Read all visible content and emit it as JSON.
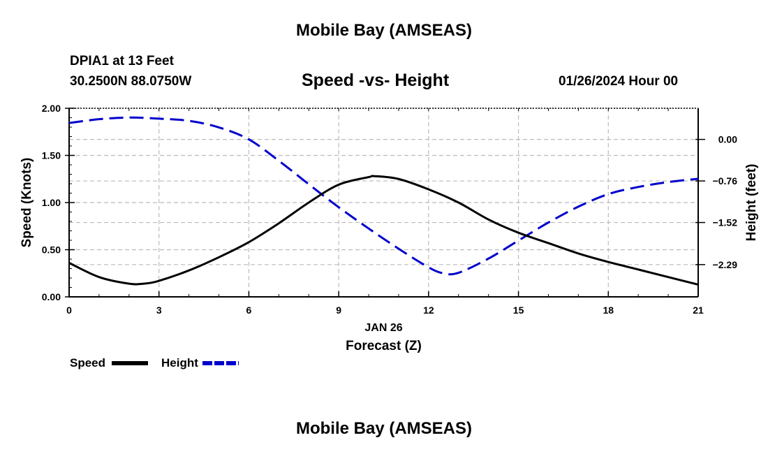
{
  "header": {
    "title": "Mobile Bay (AMSEAS)",
    "station": "DPIA1 at 13 Feet",
    "coords": "30.2500N  88.0750W",
    "datetime": "01/26/2024 Hour 00"
  },
  "footer": {
    "title": "Mobile Bay (AMSEAS)"
  },
  "colors": {
    "speed": "#000000",
    "height": "#0000cc",
    "grid": "#bbbbbb"
  },
  "chart_data": {
    "type": "line",
    "title": "Speed -vs- Height",
    "xlabel": "Forecast (Z)",
    "xdate_label": "JAN 26",
    "ylabel": "Speed (Knots)",
    "y2label": "Height (feet)",
    "xlim": [
      0,
      21
    ],
    "ylim": [
      0,
      2.0
    ],
    "y2lim": [
      -2.88,
      0.57
    ],
    "x_ticks": [
      0,
      3,
      6,
      9,
      12,
      15,
      18,
      21
    ],
    "x_tick_labels": [
      "0",
      "3",
      "6",
      "9",
      "12",
      "15",
      "18",
      "21"
    ],
    "y_ticks": [
      0.0,
      0.5,
      1.0,
      1.5,
      2.0
    ],
    "y_tick_labels": [
      "0.00",
      "0.50",
      "1.00",
      "1.50",
      "2.00"
    ],
    "y2_ticks": [
      0.0,
      -0.76,
      -1.52,
      -2.29
    ],
    "y2_tick_labels": [
      "0.00",
      "−0.76",
      "−1.52",
      "−2.29"
    ],
    "grid": true,
    "legend_position": "bottom-left",
    "series": [
      {
        "name": "Speed",
        "axis": "left",
        "style": "solid",
        "x": [
          0,
          1,
          2,
          2.5,
          3,
          4,
          5,
          6,
          7,
          8,
          9,
          10,
          10.2,
          11,
          12,
          13,
          14,
          15,
          16,
          17,
          18,
          19,
          20,
          21
        ],
        "values": [
          0.36,
          0.21,
          0.14,
          0.14,
          0.17,
          0.28,
          0.42,
          0.58,
          0.78,
          1.0,
          1.19,
          1.27,
          1.28,
          1.25,
          1.14,
          1.0,
          0.82,
          0.68,
          0.57,
          0.46,
          0.37,
          0.29,
          0.21,
          0.13
        ]
      },
      {
        "name": "Height",
        "axis": "right",
        "style": "dashed",
        "x": [
          0,
          1,
          2,
          3,
          4,
          5,
          6,
          7,
          8,
          9,
          10,
          11,
          12,
          12.5,
          13,
          14,
          15,
          16,
          17,
          18,
          19,
          20,
          21
        ],
        "values": [
          0.3,
          0.37,
          0.4,
          0.38,
          0.34,
          0.22,
          0.0,
          -0.39,
          -0.82,
          -1.24,
          -1.63,
          -2.0,
          -2.34,
          -2.45,
          -2.44,
          -2.18,
          -1.85,
          -1.52,
          -1.23,
          -1.0,
          -0.87,
          -0.78,
          -0.72
        ]
      }
    ]
  }
}
